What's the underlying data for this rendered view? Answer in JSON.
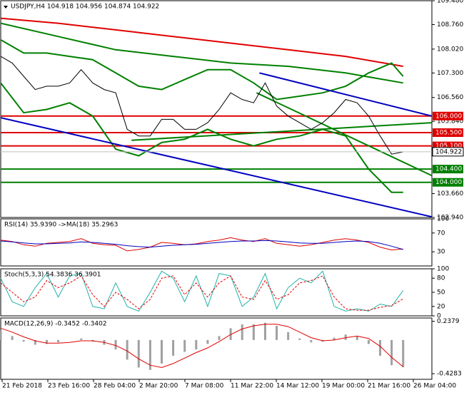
{
  "chart_data": [
    {
      "type": "line",
      "title": "USDJPY,H4  104.918 104.956 104.874 104.922",
      "time_labels": [
        "21 Feb 2018",
        "23 Feb 16:00",
        "28 Feb 04:00",
        "2 Mar 20:00",
        "7 Mar 08:00",
        "11 Mar 22:00",
        "14 Mar 12:00",
        "19 Mar 00:00",
        "21 Mar 16:00",
        "26 Mar 04:00"
      ],
      "x": [
        0,
        8,
        16,
        24,
        32,
        40,
        48,
        56,
        64,
        72,
        80,
        88,
        96,
        104,
        112,
        120,
        128,
        136,
        144,
        152,
        160,
        168,
        176,
        184,
        192,
        200,
        208,
        216,
        224,
        232,
        240,
        248,
        256,
        264,
        272,
        280
      ],
      "xlim": [
        0,
        300
      ],
      "ylim": [
        102.94,
        109.48
      ],
      "yticks": [
        {
          "value": 109.48,
          "label": "109.480"
        },
        {
          "value": 108.76,
          "label": "108.760"
        },
        {
          "value": 108.02,
          "label": "108.020"
        },
        {
          "value": 107.3,
          "label": "107.300"
        },
        {
          "value": 106.56,
          "label": "106.560"
        },
        {
          "value": 105.84,
          "label": "105.840"
        },
        {
          "value": 103.66,
          "label": "103.660"
        },
        {
          "value": 102.94,
          "label": "102.940"
        }
      ],
      "series": [
        {
          "color": "#000000",
          "values": [
            107.8,
            107.6,
            107.2,
            106.8,
            106.9,
            106.9,
            107.0,
            107.4,
            107.0,
            106.8,
            106.7,
            105.6,
            105.4,
            105.4,
            105.9,
            105.9,
            105.6,
            105.6,
            105.8,
            106.2,
            106.7,
            106.5,
            106.4,
            107.0,
            106.3,
            106.0,
            105.8,
            105.6,
            105.8,
            106.1,
            106.5,
            106.4,
            106.0,
            105.4,
            104.85,
            104.92
          ]
        }
      ],
      "overlays": [
        {
          "color": "#e00000",
          "x": [
            0,
            40,
            80,
            120,
            160,
            200,
            240,
            280
          ],
          "values": [
            108.95,
            108.8,
            108.6,
            108.4,
            108.2,
            108.0,
            107.8,
            107.5
          ]
        },
        {
          "color": "#008000",
          "x": [
            0,
            40,
            80,
            120,
            160,
            200,
            240,
            280
          ],
          "values": [
            108.8,
            108.4,
            108.0,
            107.8,
            107.6,
            107.5,
            107.3,
            107.0
          ]
        },
        {
          "color": "#008000",
          "x": [
            0,
            16,
            32,
            48,
            64,
            80,
            96,
            112,
            128,
            144,
            160,
            176,
            192,
            208,
            224,
            240,
            256,
            272,
            280
          ],
          "values": [
            108.3,
            107.9,
            107.9,
            107.8,
            107.7,
            107.3,
            106.9,
            106.8,
            107.1,
            107.4,
            107.4,
            107.0,
            106.5,
            106.6,
            106.7,
            106.9,
            107.3,
            107.6,
            107.2
          ]
        },
        {
          "color": "#008000",
          "x": [
            0,
            16,
            32,
            48,
            64,
            80,
            96,
            112,
            128,
            144,
            160,
            176,
            192,
            208,
            224,
            240,
            256,
            272,
            280
          ],
          "values": [
            107.0,
            106.1,
            106.2,
            106.4,
            106.0,
            105.0,
            104.8,
            105.2,
            105.3,
            105.6,
            105.3,
            105.1,
            105.3,
            105.4,
            105.6,
            105.4,
            104.4,
            103.7,
            103.7
          ]
        }
      ],
      "trendlines": [
        {
          "color": "#0000c0",
          "x": [
            0,
            300
          ],
          "values": [
            105.95,
            102.96
          ]
        },
        {
          "color": "#0000c0",
          "x": [
            180,
            300
          ],
          "values": [
            107.3,
            106.0
          ]
        },
        {
          "color": "#008000",
          "x": [
            91,
            300
          ],
          "values": [
            105.27,
            105.8
          ]
        },
        {
          "color": "#008000",
          "x": [
            178,
            300
          ],
          "values": [
            106.7,
            104.2
          ]
        }
      ],
      "levels": [
        {
          "value": 106.0,
          "label": "106.000",
          "color": "#e00000"
        },
        {
          "value": 105.5,
          "label": "105.500",
          "color": "#e00000"
        },
        {
          "value": 105.1,
          "label": "105.100",
          "color": "#e00000"
        },
        {
          "value": 104.4,
          "label": "104.400",
          "color": "#008000"
        },
        {
          "value": 104.0,
          "label": "104.000",
          "color": "#008000"
        }
      ],
      "current_price": {
        "value": 104.922,
        "label": "104.922"
      }
    },
    {
      "type": "line",
      "title": "RSI(14) 35.9390  ->MA(18) 35.2963",
      "x": [
        0,
        8,
        16,
        24,
        32,
        40,
        48,
        56,
        64,
        72,
        80,
        88,
        96,
        104,
        112,
        120,
        128,
        136,
        144,
        152,
        160,
        168,
        176,
        184,
        192,
        200,
        208,
        216,
        224,
        232,
        240,
        248,
        256,
        264,
        272,
        280
      ],
      "xlim": [
        0,
        300
      ],
      "ylim": [
        0,
        100
      ],
      "yticks": [
        100,
        70,
        30
      ],
      "series": [
        {
          "color": "#e00000",
          "values": [
            55,
            52,
            45,
            42,
            48,
            50,
            52,
            58,
            48,
            45,
            44,
            32,
            35,
            40,
            50,
            48,
            45,
            47,
            52,
            55,
            60,
            55,
            52,
            58,
            48,
            45,
            42,
            45,
            50,
            55,
            58,
            55,
            50,
            40,
            34,
            36
          ]
        },
        {
          "color": "#0000c0",
          "values": [
            53,
            51,
            49,
            47,
            47,
            48,
            49,
            51,
            50,
            48,
            46,
            43,
            41,
            40,
            42,
            44,
            45,
            46,
            48,
            50,
            52,
            53,
            53,
            54,
            53,
            51,
            49,
            48,
            48,
            50,
            52,
            53,
            52,
            48,
            42,
            35
          ]
        }
      ]
    },
    {
      "type": "line",
      "title": "Stoch(5,3,3) 54.3836 36.3901",
      "x": [
        0,
        8,
        16,
        24,
        32,
        40,
        48,
        56,
        64,
        72,
        80,
        88,
        96,
        104,
        112,
        120,
        128,
        136,
        144,
        152,
        160,
        168,
        176,
        184,
        192,
        200,
        208,
        216,
        224,
        232,
        240,
        248,
        256,
        264,
        272,
        280
      ],
      "xlim": [
        0,
        300
      ],
      "ylim": [
        0,
        100
      ],
      "yticks": [
        100,
        80,
        50,
        20,
        0
      ],
      "series": [
        {
          "color": "#20b2aa",
          "values": [
            80,
            30,
            20,
            60,
            90,
            40,
            85,
            90,
            20,
            15,
            70,
            20,
            10,
            50,
            95,
            80,
            30,
            85,
            20,
            90,
            85,
            20,
            40,
            90,
            15,
            60,
            80,
            70,
            95,
            20,
            10,
            15,
            10,
            25,
            20,
            54
          ]
        },
        {
          "color": "#e00000",
          "dash": true,
          "values": [
            70,
            50,
            30,
            40,
            75,
            60,
            70,
            85,
            45,
            20,
            50,
            35,
            15,
            35,
            80,
            85,
            45,
            70,
            40,
            70,
            85,
            40,
            35,
            75,
            35,
            45,
            70,
            75,
            85,
            40,
            15,
            12,
            12,
            18,
            22,
            36
          ]
        }
      ]
    },
    {
      "type": "bar",
      "title": "MACD(12,26,9) -0.3452 -0.3402",
      "x": [
        0,
        8,
        16,
        24,
        32,
        40,
        48,
        56,
        64,
        72,
        80,
        88,
        96,
        104,
        112,
        120,
        128,
        136,
        144,
        152,
        160,
        168,
        176,
        184,
        192,
        200,
        208,
        216,
        224,
        232,
        240,
        248,
        256,
        264,
        272,
        280
      ],
      "xlim": [
        0,
        300
      ],
      "ylim": [
        -0.5,
        0.28
      ],
      "yticks": [
        0.2379,
        -0.4283
      ],
      "series": [
        {
          "type": "bar",
          "color": "#a0a0a0",
          "values": [
            0.12,
            0.05,
            -0.02,
            -0.06,
            -0.05,
            -0.03,
            0.0,
            0.02,
            -0.02,
            -0.06,
            -0.12,
            -0.25,
            -0.35,
            -0.38,
            -0.3,
            -0.2,
            -0.15,
            -0.12,
            -0.05,
            0.05,
            0.15,
            0.2,
            0.2,
            0.22,
            0.18,
            0.1,
            0.02,
            -0.03,
            -0.02,
            0.03,
            0.07,
            0.05,
            -0.05,
            -0.2,
            -0.32,
            -0.345
          ]
        },
        {
          "type": "line",
          "color": "#e00000",
          "values": [
            0.15,
            0.1,
            0.04,
            -0.01,
            -0.04,
            -0.04,
            -0.03,
            -0.01,
            -0.01,
            -0.03,
            -0.07,
            -0.14,
            -0.24,
            -0.32,
            -0.35,
            -0.3,
            -0.23,
            -0.16,
            -0.1,
            -0.02,
            0.07,
            0.14,
            0.18,
            0.2,
            0.2,
            0.17,
            0.1,
            0.03,
            -0.01,
            0.0,
            0.03,
            0.05,
            0.02,
            -0.08,
            -0.22,
            -0.34
          ]
        }
      ]
    }
  ]
}
